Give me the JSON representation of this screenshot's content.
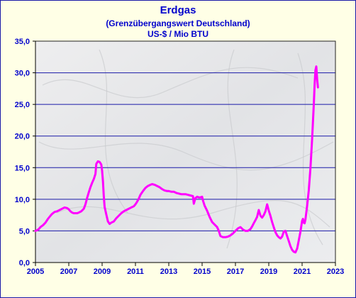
{
  "colors": {
    "title": "#0000cc",
    "line": "#ff00ff",
    "grid": "#1a1aa8",
    "background": "#ffffe6"
  },
  "chart_data": {
    "type": "line",
    "title": "Erdgas",
    "subtitle": "(Grenzübergangswert Deutschland)",
    "unit": "US-$ / Mio BTU",
    "xlabel": "",
    "ylabel": "",
    "xlim": [
      2005,
      2023
    ],
    "ylim": [
      0,
      35
    ],
    "x_ticks": [
      2005,
      2007,
      2009,
      2011,
      2013,
      2015,
      2017,
      2019,
      2021,
      2023
    ],
    "x_tick_labels": [
      "2005",
      "2007",
      "2009",
      "2011",
      "2013",
      "2015",
      "2017",
      "2019",
      "2021",
      "2023"
    ],
    "y_ticks": [
      0,
      5,
      10,
      15,
      20,
      25,
      30,
      35
    ],
    "y_tick_labels": [
      "0,0",
      "5,0",
      "10,0",
      "15,0",
      "20,0",
      "25,0",
      "30,0",
      "35,0"
    ],
    "grid": "horizontal",
    "background_texture": "marble",
    "series": [
      {
        "x": [
          2005.0,
          2005.1,
          2005.2,
          2005.3,
          2005.45,
          2005.6,
          2005.75,
          2005.9,
          2006.0,
          2006.15,
          2006.3,
          2006.45,
          2006.6,
          2006.75,
          2006.9,
          2007.0,
          2007.1,
          2007.2,
          2007.3,
          2007.4,
          2007.5,
          2007.6,
          2007.75,
          2007.9,
          2008.0,
          2008.1,
          2008.2,
          2008.3,
          2008.4,
          2008.5,
          2008.6,
          2008.65,
          2008.75,
          2008.85,
          2008.95,
          2009.0,
          2009.05,
          2009.1,
          2009.15,
          2009.25,
          2009.35,
          2009.45,
          2009.55,
          2009.7,
          2009.85,
          2010.0,
          2010.15,
          2010.3,
          2010.45,
          2010.6,
          2010.75,
          2010.9,
          2011.0,
          2011.1,
          2011.2,
          2011.3,
          2011.45,
          2011.6,
          2011.75,
          2011.9,
          2012.0,
          2012.15,
          2012.3,
          2012.45,
          2012.6,
          2012.75,
          2012.9,
          2013.0,
          2013.15,
          2013.3,
          2013.45,
          2013.6,
          2013.75,
          2013.9,
          2014.0,
          2014.15,
          2014.3,
          2014.45,
          2014.5,
          2014.6,
          2014.7,
          2014.8,
          2014.9,
          2015.0,
          2015.05,
          2015.15,
          2015.3,
          2015.45,
          2015.6,
          2015.75,
          2015.9,
          2016.0,
          2016.1,
          2016.25,
          2016.4,
          2016.55,
          2016.7,
          2016.85,
          2017.0,
          2017.15,
          2017.3,
          2017.45,
          2017.6,
          2017.75,
          2017.9,
          2018.0,
          2018.1,
          2018.2,
          2018.3,
          2018.4,
          2018.5,
          2018.6,
          2018.7,
          2018.8,
          2018.9,
          2019.0,
          2019.1,
          2019.2,
          2019.3,
          2019.4,
          2019.5,
          2019.6,
          2019.7,
          2019.8,
          2019.9,
          2020.0,
          2020.1,
          2020.2,
          2020.3,
          2020.4,
          2020.5,
          2020.6,
          2020.7,
          2020.8,
          2020.9,
          2021.0,
          2021.05,
          2021.1,
          2021.15,
          2021.2,
          2021.3,
          2021.4,
          2021.5,
          2021.6,
          2021.7,
          2021.75,
          2021.8,
          2021.85,
          2021.9,
          2021.95
        ],
        "y": [
          5.0,
          5.1,
          5.3,
          5.6,
          5.9,
          6.3,
          6.9,
          7.4,
          7.7,
          8.0,
          8.1,
          8.3,
          8.5,
          8.7,
          8.6,
          8.4,
          8.1,
          7.9,
          7.8,
          7.8,
          7.8,
          7.9,
          8.1,
          8.5,
          9.2,
          10.2,
          11.1,
          11.9,
          12.6,
          13.2,
          14.0,
          15.6,
          16.0,
          15.9,
          15.5,
          14.5,
          12.8,
          10.6,
          8.8,
          7.6,
          6.5,
          6.1,
          6.3,
          6.5,
          7.0,
          7.4,
          7.8,
          8.1,
          8.3,
          8.5,
          8.7,
          8.9,
          9.2,
          9.6,
          10.1,
          10.7,
          11.3,
          11.8,
          12.1,
          12.3,
          12.4,
          12.3,
          12.1,
          11.9,
          11.6,
          11.4,
          11.3,
          11.3,
          11.2,
          11.2,
          11.0,
          10.9,
          10.8,
          10.8,
          10.8,
          10.7,
          10.6,
          10.5,
          9.3,
          10.2,
          10.4,
          10.3,
          10.3,
          10.4,
          9.8,
          9.0,
          8.2,
          7.2,
          6.4,
          6.0,
          5.6,
          5.0,
          4.2,
          4.0,
          4.0,
          4.1,
          4.3,
          4.6,
          5.0,
          5.4,
          5.6,
          5.2,
          5.0,
          5.0,
          5.3,
          5.7,
          6.2,
          6.7,
          7.2,
          8.3,
          7.4,
          7.1,
          7.5,
          8.1,
          9.2,
          8.2,
          7.4,
          6.4,
          5.6,
          4.8,
          4.3,
          4.0,
          3.8,
          4.1,
          4.9,
          5.0,
          4.2,
          3.4,
          2.6,
          2.0,
          1.7,
          1.6,
          2.2,
          3.5,
          4.9,
          6.6,
          6.9,
          6.3,
          6.2,
          6.8,
          8.9,
          11.4,
          15.0,
          19.5,
          25.0,
          28.0,
          30.4,
          31.0,
          29.0,
          27.7
        ]
      }
    ]
  }
}
